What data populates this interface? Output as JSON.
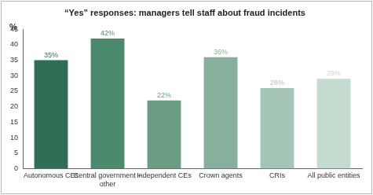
{
  "chart_data": {
    "type": "bar",
    "title": "“Yes” responses: managers tell staff about fraud incidents",
    "ylabel": "%",
    "categories": [
      "Autonomous CEs",
      "Central government – other",
      "Independent CEs",
      "Crown agents",
      "CRIs",
      "All public entities"
    ],
    "values": [
      35,
      42,
      22,
      36,
      26,
      29
    ],
    "value_labels": [
      "35%",
      "42%",
      "22%",
      "36%",
      "26%",
      "29%"
    ],
    "colors": [
      "#2f6d54",
      "#4c8a6d",
      "#6b9d84",
      "#87b09c",
      "#a6c6b5",
      "#c4dccf"
    ],
    "ylim": [
      0,
      45
    ],
    "yticks": [
      0,
      5,
      10,
      15,
      20,
      25,
      30,
      35,
      40,
      45
    ],
    "grid": false,
    "data_labels": true
  }
}
